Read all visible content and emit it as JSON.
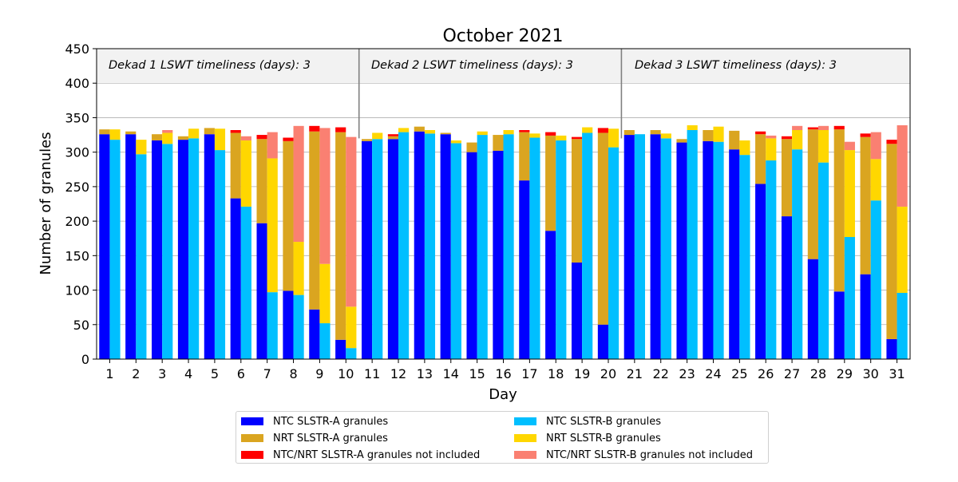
{
  "chart_data": {
    "type": "bar",
    "title": "October 2021",
    "xlabel": "Day",
    "ylabel": "Number of granules",
    "ylim": [
      0,
      450
    ],
    "yticks": [
      0,
      50,
      100,
      150,
      200,
      250,
      300,
      350,
      400,
      450
    ],
    "categories": [
      "1",
      "2",
      "3",
      "4",
      "5",
      "6",
      "7",
      "8",
      "9",
      "10",
      "11",
      "12",
      "13",
      "14",
      "15",
      "16",
      "17",
      "18",
      "19",
      "20",
      "21",
      "22",
      "23",
      "24",
      "25",
      "26",
      "27",
      "28",
      "29",
      "30",
      "31"
    ],
    "grid": "horizontal",
    "legend_position": "bottom",
    "dekad_annotations": [
      {
        "text": "Dekad 1 LSWT timeliness (days): 3"
      },
      {
        "text": "Dekad 2 LSWT timeliness (days): 3"
      },
      {
        "text": "Dekad 3 LSWT timeliness (days): 3"
      }
    ],
    "series": [
      {
        "name": "NTC SLSTR-A granules",
        "color": "#0000ff",
        "satellite": "A",
        "values": [
          326,
          326,
          317,
          318,
          326,
          233,
          197,
          99,
          72,
          28,
          316,
          319,
          330,
          326,
          300,
          302,
          259,
          186,
          140,
          50,
          325,
          326,
          314,
          316,
          304,
          254,
          207,
          145,
          98,
          123,
          29
        ]
      },
      {
        "name": "NRT SLSTR-A granules",
        "color": "#daa520",
        "satellite": "A",
        "values": [
          7,
          4,
          9,
          5,
          9,
          95,
          122,
          217,
          258,
          301,
          3,
          4,
          7,
          2,
          14,
          23,
          70,
          138,
          179,
          278,
          7,
          6,
          5,
          16,
          27,
          72,
          112,
          188,
          235,
          199,
          283
        ]
      },
      {
        "name": "NTC/NRT SLSTR-A granules not included",
        "color": "#ff0000",
        "satellite": "A",
        "values": [
          0,
          0,
          0,
          0,
          0,
          4,
          6,
          5,
          8,
          7,
          0,
          3,
          0,
          0,
          0,
          0,
          3,
          5,
          3,
          7,
          0,
          0,
          0,
          0,
          0,
          4,
          4,
          3,
          5,
          5,
          6
        ]
      },
      {
        "name": "NTC SLSTR-B granules",
        "color": "#00bfff",
        "satellite": "B",
        "values": [
          318,
          297,
          312,
          320,
          303,
          221,
          97,
          93,
          52,
          16,
          319,
          329,
          327,
          313,
          325,
          326,
          321,
          317,
          328,
          307,
          326,
          320,
          332,
          315,
          296,
          288,
          304,
          285,
          177,
          230,
          96
        ]
      },
      {
        "name": "NRT SLSTR-B granules",
        "color": "#ffd700",
        "satellite": "B",
        "values": [
          15,
          21,
          16,
          14,
          31,
          96,
          194,
          77,
          86,
          60,
          9,
          6,
          5,
          4,
          5,
          6,
          6,
          7,
          8,
          27,
          0,
          7,
          7,
          22,
          21,
          32,
          28,
          47,
          126,
          60,
          125
        ]
      },
      {
        "name": "NTC/NRT SLSTR-B granules not included",
        "color": "#fa8072",
        "satellite": "B",
        "values": [
          0,
          0,
          4,
          0,
          0,
          6,
          38,
          168,
          197,
          246,
          0,
          0,
          0,
          0,
          0,
          0,
          0,
          0,
          0,
          0,
          0,
          0,
          0,
          0,
          0,
          4,
          6,
          6,
          12,
          39,
          118
        ]
      }
    ]
  }
}
